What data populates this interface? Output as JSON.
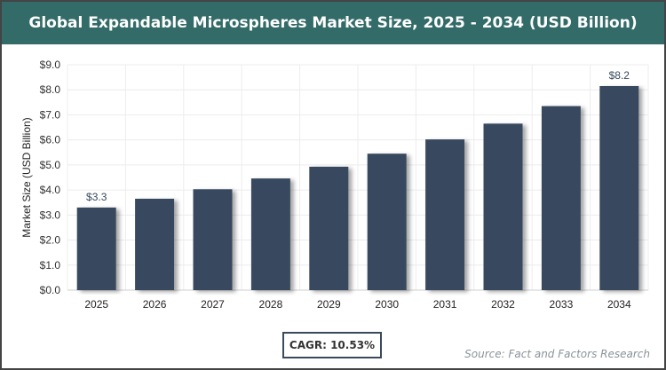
{
  "title": "Global Expandable Microspheres Market Size, 2025 - 2034 (USD Billion)",
  "cagr": "CAGR: 10.53%",
  "source": "Source: Fact and Factors Research",
  "chart_data": {
    "type": "bar",
    "title": "Global Expandable Microspheres Market Size, 2025 - 2034 (USD Billion)",
    "xlabel": "",
    "ylabel": "Market Size (USD Billion)",
    "categories": [
      "2025",
      "2026",
      "2027",
      "2028",
      "2029",
      "2030",
      "2031",
      "2032",
      "2033",
      "2034"
    ],
    "values": [
      3.3,
      3.65,
      4.03,
      4.46,
      4.93,
      5.45,
      6.02,
      6.65,
      7.35,
      8.15
    ],
    "data_labels": {
      "2025": "$3.3",
      "2034": "$8.2"
    },
    "ylim": [
      0,
      9
    ],
    "yticks": [
      "$0.0",
      "$1.0",
      "$2.0",
      "$3.0",
      "$4.0",
      "$5.0",
      "$6.0",
      "$7.0",
      "$8.0",
      "$9.0"
    ],
    "grid": true,
    "bar_color": "#384a5f",
    "title_bar_color": "#336b68"
  }
}
